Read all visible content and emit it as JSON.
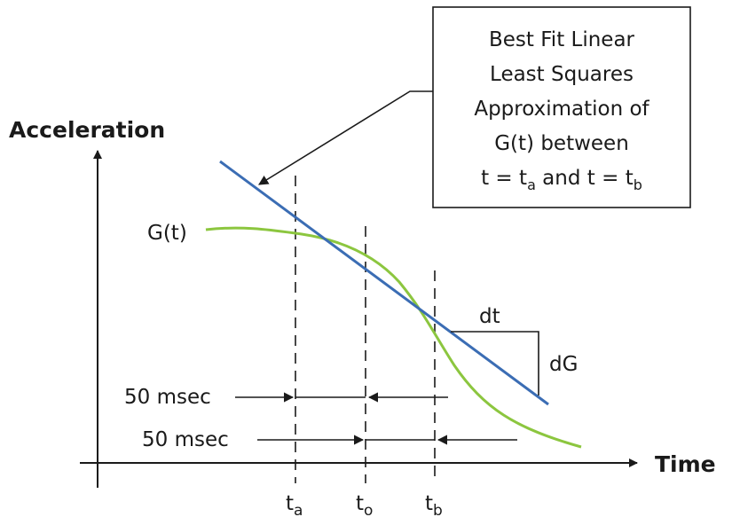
{
  "axes": {
    "y_label": "Acceleration",
    "x_label": "Time"
  },
  "curve_label": "G(t)",
  "callout": {
    "lines": [
      "Best Fit Linear",
      "Least Squares",
      "Approximation of",
      "G(t) between"
    ],
    "last_line": {
      "t1": "t",
      "eq1": " = ",
      "sub_a": "a",
      "and": " and ",
      "t2": "t",
      "eq2": " = ",
      "sub_b": "b"
    }
  },
  "slope_labels": {
    "dt": "dt",
    "dG": "dG"
  },
  "intervals": [
    {
      "label": "50 msec"
    },
    {
      "label": "50 msec"
    }
  ],
  "ticks": [
    {
      "base": "t",
      "sub": "a"
    },
    {
      "base": "t",
      "sub": "o"
    },
    {
      "base": "t",
      "sub": "b"
    }
  ],
  "colors": {
    "curve": "#8cc63f",
    "fit_line": "#3b6db4",
    "ink": "#1a1a1a"
  }
}
